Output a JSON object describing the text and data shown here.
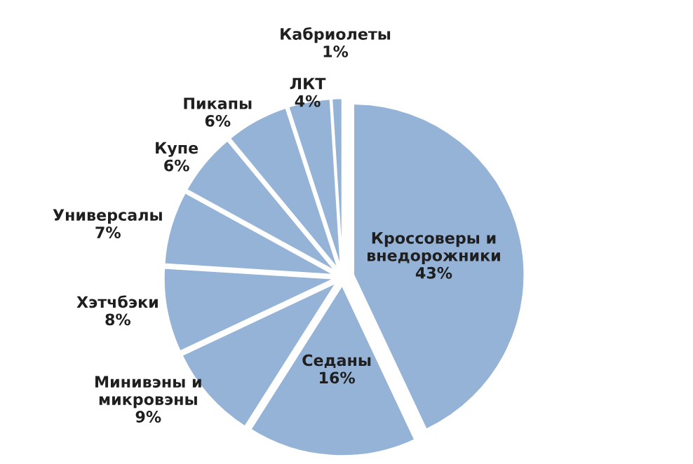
{
  "chart_data": {
    "type": "pie",
    "categories": [
      "Кроссоверы и\nвнедорожники",
      "Седаны",
      "Минивэны и\nмикровэны",
      "Хэтчбэки",
      "Универсалы",
      "Купе",
      "Пикапы",
      "ЛКТ",
      "Кабриолеты"
    ],
    "values": [
      43,
      16,
      9,
      8,
      7,
      6,
      6,
      4,
      1
    ],
    "value_labels": [
      "43%",
      "16%",
      "9%",
      "8%",
      "7%",
      "6%",
      "6%",
      "4%",
      "1%"
    ],
    "colors": [
      "#95b3d7",
      "#95b3d7",
      "#95b3d7",
      "#95b3d7",
      "#95b3d7",
      "#95b3d7",
      "#95b3d7",
      "#95b3d7",
      "#95b3d7"
    ]
  }
}
